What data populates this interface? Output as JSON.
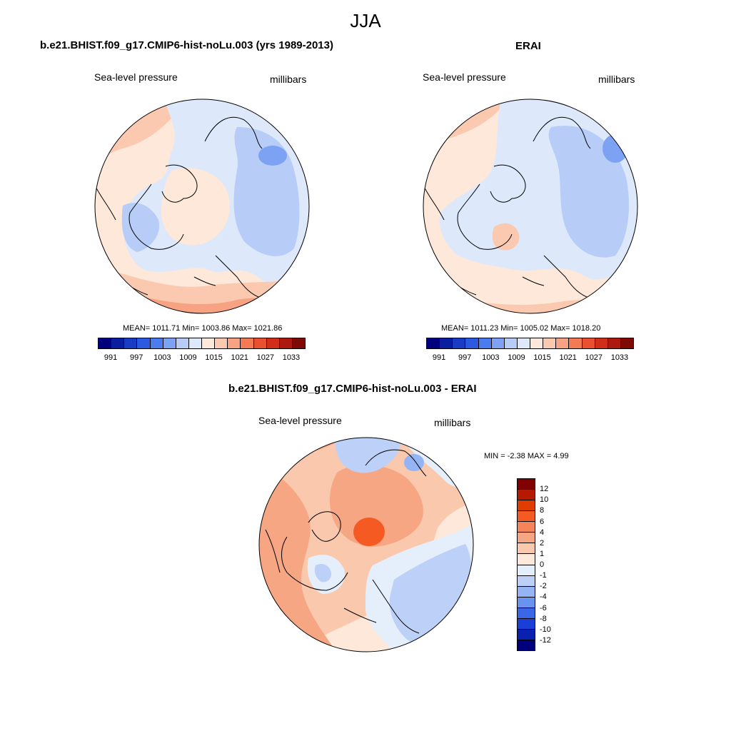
{
  "title": "JJA",
  "panels": [
    {
      "title": "b.e21.BHIST.f09_g17.CMIP6-hist-noLu.003 (yrs 1989-2013)",
      "variable": "Sea-level pressure",
      "units": "millibars",
      "stats": "MEAN= 1011.71  Min= 1003.86  Max= 1021.86"
    },
    {
      "title": "ERAI",
      "variable": "Sea-level pressure",
      "units": "millibars",
      "stats": "MEAN= 1011.23  Min= 1005.02  Max= 1018.20"
    },
    {
      "title": "b.e21.BHIST.f09_g17.CMIP6-hist-noLu.003 - ERAI",
      "variable": "Sea-level pressure",
      "units": "millibars",
      "stats": "MIN =  -2.38 MAX =   4.99"
    }
  ],
  "abs_colorbar": {
    "labels": [
      "991",
      "997",
      "1003",
      "1009",
      "1015",
      "1021",
      "1027",
      "1033"
    ],
    "colors": [
      "#00007f",
      "#0a1fa0",
      "#1a3cc4",
      "#2b5ae0",
      "#4a7cf0",
      "#7da2f3",
      "#b7ccf7",
      "#dde8fb",
      "#fde8da",
      "#fbc9b0",
      "#f6a283",
      "#f27a55",
      "#e8502f",
      "#d12d1b",
      "#ac1a0f",
      "#7f0a05"
    ]
  },
  "diff_colorbar": {
    "labels": [
      "12",
      "10",
      "8",
      "6",
      "4",
      "2",
      "1",
      "0",
      "-1",
      "-2",
      "-4",
      "-6",
      "-8",
      "-10",
      "-12"
    ],
    "colors": [
      "#800000",
      "#b51a00",
      "#e03c00",
      "#f55a23",
      "#f5845a",
      "#f6a683",
      "#fac8ad",
      "#fde8da",
      "#e5eefb",
      "#bcd0f8",
      "#94b4f5",
      "#6a92f0",
      "#3a66e8",
      "#1a3fd8",
      "#0a20b0",
      "#00007f"
    ]
  }
}
